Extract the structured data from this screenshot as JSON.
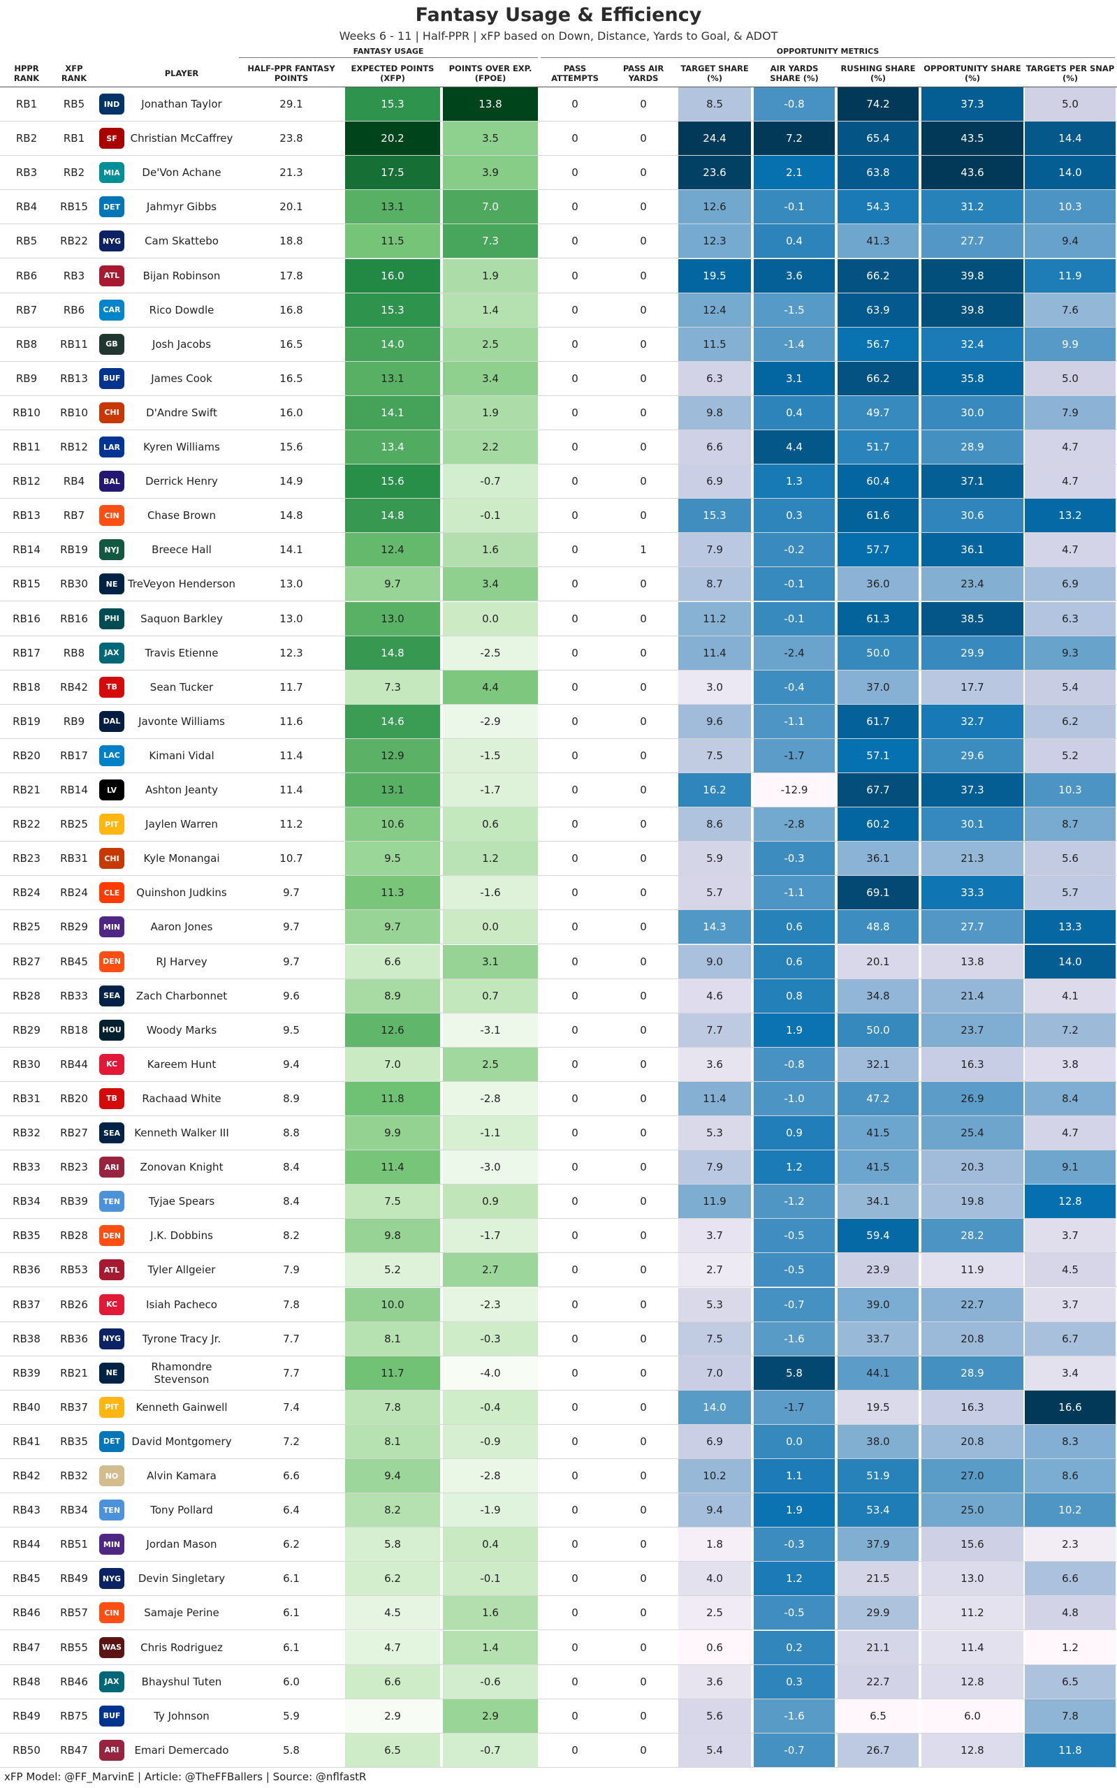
{
  "title": "Fantasy Usage & Efficiency",
  "subtitle": "Weeks 6 - 11 | Half-PPR | xFP based on Down, Distance, Yards to Goal, & ADOT",
  "footer": "xFP Model: @FF_MarvinE | Article: @TheFFBallers | Source: @nflfastR",
  "groups": {
    "fantasy": "FANTASY USAGE",
    "opportunity": "OPPORTUNITY METRICS"
  },
  "columns": {
    "hppr_rank": "HPPR RANK",
    "xfp_rank": "XFP RANK",
    "player": "PLAYER",
    "half_ppr_points": "HALF-PPR FANTASY POINTS",
    "xfp": "EXPECTED POINTS (XFP)",
    "fpoe": "POINTS OVER EXP. (FPOE)",
    "pass_attempts": "PASS ATTEMPTS",
    "pass_air_yards": "PASS AIR YARDS",
    "target_share": "TARGET SHARE (%)",
    "air_yards_share": "AIR YARDS SHARE (%)",
    "rushing_share": "RUSHING SHARE (%)",
    "opportunity_share": "OPPORTUNITY SHARE (%)",
    "targets_per_snap": "TARGETS PER SNAP (%)"
  },
  "team_colors": {
    "IND": "#013369",
    "SF": "#AA0000",
    "MIA": "#008E97",
    "DET": "#0076B6",
    "NYG": "#0B2265",
    "ATL": "#A71930",
    "CAR": "#0085CA",
    "GB": "#203731",
    "BUF": "#00338D",
    "CHI": "#C83803",
    "LAR": "#003594",
    "BAL": "#241773",
    "CIN": "#FB4F14",
    "NYJ": "#125740",
    "NE": "#002244",
    "PHI": "#004C54",
    "JAX": "#006778",
    "TB": "#D50A0A",
    "DAL": "#041E42",
    "LAC": "#0080C6",
    "LV": "#000000",
    "PIT": "#FFB612",
    "CLE": "#FF3C00",
    "MIN": "#4F2683",
    "DEN": "#FB4F14",
    "SEA": "#002244",
    "HOU": "#03202F",
    "KC": "#E31837",
    "ARI": "#97233F",
    "TEN": "#4B92DB",
    "NO": "#D3BC8D",
    "WAS": "#5A1414"
  },
  "chart_data": {
    "type": "table",
    "title": "Fantasy Usage & Efficiency",
    "rows": [
      {
        "hppr_rank": "RB1",
        "xfp_rank": "RB5",
        "team": "IND",
        "player": "Jonathan Taylor",
        "points": 29.1,
        "xfp": 15.3,
        "fpoe": 13.8,
        "pass_att": 0,
        "pass_air": 0,
        "tgt_share": 8.5,
        "air_share": -0.8,
        "rush_share": 74.2,
        "opp_share": 37.3,
        "tps": 5.0
      },
      {
        "hppr_rank": "RB2",
        "xfp_rank": "RB1",
        "team": "SF",
        "player": "Christian McCaffrey",
        "points": 23.8,
        "xfp": 20.2,
        "fpoe": 3.5,
        "pass_att": 0,
        "pass_air": 0,
        "tgt_share": 24.4,
        "air_share": 7.2,
        "rush_share": 65.4,
        "opp_share": 43.5,
        "tps": 14.4
      },
      {
        "hppr_rank": "RB3",
        "xfp_rank": "RB2",
        "team": "MIA",
        "player": "De'Von Achane",
        "points": 21.3,
        "xfp": 17.5,
        "fpoe": 3.9,
        "pass_att": 0,
        "pass_air": 0,
        "tgt_share": 23.6,
        "air_share": 2.1,
        "rush_share": 63.8,
        "opp_share": 43.6,
        "tps": 14.0
      },
      {
        "hppr_rank": "RB4",
        "xfp_rank": "RB15",
        "team": "DET",
        "player": "Jahmyr Gibbs",
        "points": 20.1,
        "xfp": 13.1,
        "fpoe": 7.0,
        "pass_att": 0,
        "pass_air": 0,
        "tgt_share": 12.6,
        "air_share": -0.1,
        "rush_share": 54.3,
        "opp_share": 31.2,
        "tps": 10.3
      },
      {
        "hppr_rank": "RB5",
        "xfp_rank": "RB22",
        "team": "NYG",
        "player": "Cam Skattebo",
        "points": 18.8,
        "xfp": 11.5,
        "fpoe": 7.3,
        "pass_att": 0,
        "pass_air": 0,
        "tgt_share": 12.3,
        "air_share": 0.4,
        "rush_share": 41.3,
        "opp_share": 27.7,
        "tps": 9.4
      },
      {
        "hppr_rank": "RB6",
        "xfp_rank": "RB3",
        "team": "ATL",
        "player": "Bijan Robinson",
        "points": 17.8,
        "xfp": 16.0,
        "fpoe": 1.9,
        "pass_att": 0,
        "pass_air": 0,
        "tgt_share": 19.5,
        "air_share": 3.6,
        "rush_share": 66.2,
        "opp_share": 39.8,
        "tps": 11.9
      },
      {
        "hppr_rank": "RB7",
        "xfp_rank": "RB6",
        "team": "CAR",
        "player": "Rico Dowdle",
        "points": 16.8,
        "xfp": 15.3,
        "fpoe": 1.4,
        "pass_att": 0,
        "pass_air": 0,
        "tgt_share": 12.4,
        "air_share": -1.5,
        "rush_share": 63.9,
        "opp_share": 39.8,
        "tps": 7.6
      },
      {
        "hppr_rank": "RB8",
        "xfp_rank": "RB11",
        "team": "GB",
        "player": "Josh Jacobs",
        "points": 16.5,
        "xfp": 14.0,
        "fpoe": 2.5,
        "pass_att": 0,
        "pass_air": 0,
        "tgt_share": 11.5,
        "air_share": -1.4,
        "rush_share": 56.7,
        "opp_share": 32.4,
        "tps": 9.9
      },
      {
        "hppr_rank": "RB9",
        "xfp_rank": "RB13",
        "team": "BUF",
        "player": "James Cook",
        "points": 16.5,
        "xfp": 13.1,
        "fpoe": 3.4,
        "pass_att": 0,
        "pass_air": 0,
        "tgt_share": 6.3,
        "air_share": 3.1,
        "rush_share": 66.2,
        "opp_share": 35.8,
        "tps": 5.0
      },
      {
        "hppr_rank": "RB10",
        "xfp_rank": "RB10",
        "team": "CHI",
        "player": "D'Andre Swift",
        "points": 16.0,
        "xfp": 14.1,
        "fpoe": 1.9,
        "pass_att": 0,
        "pass_air": 0,
        "tgt_share": 9.8,
        "air_share": 0.4,
        "rush_share": 49.7,
        "opp_share": 30.0,
        "tps": 7.9
      },
      {
        "hppr_rank": "RB11",
        "xfp_rank": "RB12",
        "team": "LAR",
        "player": "Kyren Williams",
        "points": 15.6,
        "xfp": 13.4,
        "fpoe": 2.2,
        "pass_att": 0,
        "pass_air": 0,
        "tgt_share": 6.6,
        "air_share": 4.4,
        "rush_share": 51.7,
        "opp_share": 28.9,
        "tps": 4.7
      },
      {
        "hppr_rank": "RB12",
        "xfp_rank": "RB4",
        "team": "BAL",
        "player": "Derrick Henry",
        "points": 14.9,
        "xfp": 15.6,
        "fpoe": -0.7,
        "pass_att": 0,
        "pass_air": 0,
        "tgt_share": 6.9,
        "air_share": 1.3,
        "rush_share": 60.4,
        "opp_share": 37.1,
        "tps": 4.7
      },
      {
        "hppr_rank": "RB13",
        "xfp_rank": "RB7",
        "team": "CIN",
        "player": "Chase Brown",
        "points": 14.8,
        "xfp": 14.8,
        "fpoe": -0.1,
        "pass_att": 0,
        "pass_air": 0,
        "tgt_share": 15.3,
        "air_share": 0.3,
        "rush_share": 61.6,
        "opp_share": 30.6,
        "tps": 13.2
      },
      {
        "hppr_rank": "RB14",
        "xfp_rank": "RB19",
        "team": "NYJ",
        "player": "Breece Hall",
        "points": 14.1,
        "xfp": 12.4,
        "fpoe": 1.6,
        "pass_att": 0,
        "pass_air": 1,
        "tgt_share": 7.9,
        "air_share": -0.2,
        "rush_share": 57.7,
        "opp_share": 36.1,
        "tps": 4.7
      },
      {
        "hppr_rank": "RB15",
        "xfp_rank": "RB30",
        "team": "NE",
        "player": "TreVeyon Henderson",
        "points": 13.0,
        "xfp": 9.7,
        "fpoe": 3.4,
        "pass_att": 0,
        "pass_air": 0,
        "tgt_share": 8.7,
        "air_share": -0.1,
        "rush_share": 36.0,
        "opp_share": 23.4,
        "tps": 6.9
      },
      {
        "hppr_rank": "RB16",
        "xfp_rank": "RB16",
        "team": "PHI",
        "player": "Saquon Barkley",
        "points": 13.0,
        "xfp": 13.0,
        "fpoe": 0.0,
        "pass_att": 0,
        "pass_air": 0,
        "tgt_share": 11.2,
        "air_share": -0.1,
        "rush_share": 61.3,
        "opp_share": 38.5,
        "tps": 6.3
      },
      {
        "hppr_rank": "RB17",
        "xfp_rank": "RB8",
        "team": "JAX",
        "player": "Travis Etienne",
        "points": 12.3,
        "xfp": 14.8,
        "fpoe": -2.5,
        "pass_att": 0,
        "pass_air": 0,
        "tgt_share": 11.4,
        "air_share": -2.4,
        "rush_share": 50.0,
        "opp_share": 29.9,
        "tps": 9.3
      },
      {
        "hppr_rank": "RB18",
        "xfp_rank": "RB42",
        "team": "TB",
        "player": "Sean Tucker",
        "points": 11.7,
        "xfp": 7.3,
        "fpoe": 4.4,
        "pass_att": 0,
        "pass_air": 0,
        "tgt_share": 3.0,
        "air_share": -0.4,
        "rush_share": 37.0,
        "opp_share": 17.7,
        "tps": 5.4
      },
      {
        "hppr_rank": "RB19",
        "xfp_rank": "RB9",
        "team": "DAL",
        "player": "Javonte Williams",
        "points": 11.6,
        "xfp": 14.6,
        "fpoe": -2.9,
        "pass_att": 0,
        "pass_air": 0,
        "tgt_share": 9.6,
        "air_share": -1.1,
        "rush_share": 61.7,
        "opp_share": 32.7,
        "tps": 6.2
      },
      {
        "hppr_rank": "RB20",
        "xfp_rank": "RB17",
        "team": "LAC",
        "player": "Kimani Vidal",
        "points": 11.4,
        "xfp": 12.9,
        "fpoe": -1.5,
        "pass_att": 0,
        "pass_air": 0,
        "tgt_share": 7.5,
        "air_share": -1.7,
        "rush_share": 57.1,
        "opp_share": 29.6,
        "tps": 5.2
      },
      {
        "hppr_rank": "RB21",
        "xfp_rank": "RB14",
        "team": "LV",
        "player": "Ashton Jeanty",
        "points": 11.4,
        "xfp": 13.1,
        "fpoe": -1.7,
        "pass_att": 0,
        "pass_air": 0,
        "tgt_share": 16.2,
        "air_share": -12.9,
        "rush_share": 67.7,
        "opp_share": 37.3,
        "tps": 10.3
      },
      {
        "hppr_rank": "RB22",
        "xfp_rank": "RB25",
        "team": "PIT",
        "player": "Jaylen Warren",
        "points": 11.2,
        "xfp": 10.6,
        "fpoe": 0.6,
        "pass_att": 0,
        "pass_air": 0,
        "tgt_share": 8.6,
        "air_share": -2.8,
        "rush_share": 60.2,
        "opp_share": 30.1,
        "tps": 8.7
      },
      {
        "hppr_rank": "RB23",
        "xfp_rank": "RB31",
        "team": "CHI",
        "player": "Kyle Monangai",
        "points": 10.7,
        "xfp": 9.5,
        "fpoe": 1.2,
        "pass_att": 0,
        "pass_air": 0,
        "tgt_share": 5.9,
        "air_share": -0.3,
        "rush_share": 36.1,
        "opp_share": 21.3,
        "tps": 5.6
      },
      {
        "hppr_rank": "RB24",
        "xfp_rank": "RB24",
        "team": "CLE",
        "player": "Quinshon Judkins",
        "points": 9.7,
        "xfp": 11.3,
        "fpoe": -1.6,
        "pass_att": 0,
        "pass_air": 0,
        "tgt_share": 5.7,
        "air_share": -1.1,
        "rush_share": 69.1,
        "opp_share": 33.3,
        "tps": 5.7
      },
      {
        "hppr_rank": "RB25",
        "xfp_rank": "RB29",
        "team": "MIN",
        "player": "Aaron Jones",
        "points": 9.7,
        "xfp": 9.7,
        "fpoe": 0.0,
        "pass_att": 0,
        "pass_air": 0,
        "tgt_share": 14.3,
        "air_share": 0.6,
        "rush_share": 48.8,
        "opp_share": 27.7,
        "tps": 13.3
      },
      {
        "hppr_rank": "RB27",
        "xfp_rank": "RB45",
        "team": "DEN",
        "player": "RJ Harvey",
        "points": 9.7,
        "xfp": 6.6,
        "fpoe": 3.1,
        "pass_att": 0,
        "pass_air": 0,
        "tgt_share": 9.0,
        "air_share": 0.6,
        "rush_share": 20.1,
        "opp_share": 13.8,
        "tps": 14.0
      },
      {
        "hppr_rank": "RB28",
        "xfp_rank": "RB33",
        "team": "SEA",
        "player": "Zach Charbonnet",
        "points": 9.6,
        "xfp": 8.9,
        "fpoe": 0.7,
        "pass_att": 0,
        "pass_air": 0,
        "tgt_share": 4.6,
        "air_share": 0.8,
        "rush_share": 34.8,
        "opp_share": 21.4,
        "tps": 4.1
      },
      {
        "hppr_rank": "RB29",
        "xfp_rank": "RB18",
        "team": "HOU",
        "player": "Woody Marks",
        "points": 9.5,
        "xfp": 12.6,
        "fpoe": -3.1,
        "pass_att": 0,
        "pass_air": 0,
        "tgt_share": 7.7,
        "air_share": 1.9,
        "rush_share": 50.0,
        "opp_share": 23.7,
        "tps": 7.2
      },
      {
        "hppr_rank": "RB30",
        "xfp_rank": "RB44",
        "team": "KC",
        "player": "Kareem Hunt",
        "points": 9.4,
        "xfp": 7.0,
        "fpoe": 2.5,
        "pass_att": 0,
        "pass_air": 0,
        "tgt_share": 3.6,
        "air_share": -0.8,
        "rush_share": 32.1,
        "opp_share": 16.3,
        "tps": 3.8
      },
      {
        "hppr_rank": "RB31",
        "xfp_rank": "RB20",
        "team": "TB",
        "player": "Rachaad White",
        "points": 8.9,
        "xfp": 11.8,
        "fpoe": -2.8,
        "pass_att": 0,
        "pass_air": 0,
        "tgt_share": 11.4,
        "air_share": -1.0,
        "rush_share": 47.2,
        "opp_share": 26.9,
        "tps": 8.4
      },
      {
        "hppr_rank": "RB32",
        "xfp_rank": "RB27",
        "team": "SEA",
        "player": "Kenneth Walker III",
        "points": 8.8,
        "xfp": 9.9,
        "fpoe": -1.1,
        "pass_att": 0,
        "pass_air": 0,
        "tgt_share": 5.3,
        "air_share": 0.9,
        "rush_share": 41.5,
        "opp_share": 25.4,
        "tps": 4.7
      },
      {
        "hppr_rank": "RB33",
        "xfp_rank": "RB23",
        "team": "ARI",
        "player": "Zonovan Knight",
        "points": 8.4,
        "xfp": 11.4,
        "fpoe": -3.0,
        "pass_att": 0,
        "pass_air": 0,
        "tgt_share": 7.9,
        "air_share": 1.2,
        "rush_share": 41.5,
        "opp_share": 20.3,
        "tps": 9.1
      },
      {
        "hppr_rank": "RB34",
        "xfp_rank": "RB39",
        "team": "TEN",
        "player": "Tyjae Spears",
        "points": 8.4,
        "xfp": 7.5,
        "fpoe": 0.9,
        "pass_att": 0,
        "pass_air": 0,
        "tgt_share": 11.9,
        "air_share": -1.2,
        "rush_share": 34.1,
        "opp_share": 19.8,
        "tps": 12.8
      },
      {
        "hppr_rank": "RB35",
        "xfp_rank": "RB28",
        "team": "DEN",
        "player": "J.K. Dobbins",
        "points": 8.2,
        "xfp": 9.8,
        "fpoe": -1.7,
        "pass_att": 0,
        "pass_air": 0,
        "tgt_share": 3.7,
        "air_share": -0.5,
        "rush_share": 59.4,
        "opp_share": 28.2,
        "tps": 3.7
      },
      {
        "hppr_rank": "RB36",
        "xfp_rank": "RB53",
        "team": "ATL",
        "player": "Tyler Allgeier",
        "points": 7.9,
        "xfp": 5.2,
        "fpoe": 2.7,
        "pass_att": 0,
        "pass_air": 0,
        "tgt_share": 2.7,
        "air_share": -0.5,
        "rush_share": 23.9,
        "opp_share": 11.9,
        "tps": 4.5
      },
      {
        "hppr_rank": "RB37",
        "xfp_rank": "RB26",
        "team": "KC",
        "player": "Isiah Pacheco",
        "points": 7.8,
        "xfp": 10.0,
        "fpoe": -2.3,
        "pass_att": 0,
        "pass_air": 0,
        "tgt_share": 5.3,
        "air_share": -0.7,
        "rush_share": 39.0,
        "opp_share": 22.7,
        "tps": 3.7
      },
      {
        "hppr_rank": "RB38",
        "xfp_rank": "RB36",
        "team": "NYG",
        "player": "Tyrone Tracy Jr.",
        "points": 7.7,
        "xfp": 8.1,
        "fpoe": -0.3,
        "pass_att": 0,
        "pass_air": 0,
        "tgt_share": 7.5,
        "air_share": -1.6,
        "rush_share": 33.7,
        "opp_share": 20.8,
        "tps": 6.7
      },
      {
        "hppr_rank": "RB39",
        "xfp_rank": "RB21",
        "team": "NE",
        "player": "Rhamondre Stevenson",
        "points": 7.7,
        "xfp": 11.7,
        "fpoe": -4.0,
        "pass_att": 0,
        "pass_air": 0,
        "tgt_share": 7.0,
        "air_share": 5.8,
        "rush_share": 44.1,
        "opp_share": 28.9,
        "tps": 3.4
      },
      {
        "hppr_rank": "RB40",
        "xfp_rank": "RB37",
        "team": "PIT",
        "player": "Kenneth Gainwell",
        "points": 7.4,
        "xfp": 7.8,
        "fpoe": -0.4,
        "pass_att": 0,
        "pass_air": 0,
        "tgt_share": 14.0,
        "air_share": -1.7,
        "rush_share": 19.5,
        "opp_share": 16.3,
        "tps": 16.6
      },
      {
        "hppr_rank": "RB41",
        "xfp_rank": "RB35",
        "team": "DET",
        "player": "David Montgomery",
        "points": 7.2,
        "xfp": 8.1,
        "fpoe": -0.9,
        "pass_att": 0,
        "pass_air": 0,
        "tgt_share": 6.9,
        "air_share": 0.0,
        "rush_share": 38.0,
        "opp_share": 20.8,
        "tps": 8.3
      },
      {
        "hppr_rank": "RB42",
        "xfp_rank": "RB32",
        "team": "NO",
        "player": "Alvin Kamara",
        "points": 6.6,
        "xfp": 9.4,
        "fpoe": -2.8,
        "pass_att": 0,
        "pass_air": 0,
        "tgt_share": 10.2,
        "air_share": 1.1,
        "rush_share": 51.9,
        "opp_share": 27.0,
        "tps": 8.6
      },
      {
        "hppr_rank": "RB43",
        "xfp_rank": "RB34",
        "team": "TEN",
        "player": "Tony Pollard",
        "points": 6.4,
        "xfp": 8.2,
        "fpoe": -1.9,
        "pass_att": 0,
        "pass_air": 0,
        "tgt_share": 9.4,
        "air_share": 1.9,
        "rush_share": 53.4,
        "opp_share": 25.0,
        "tps": 10.2
      },
      {
        "hppr_rank": "RB44",
        "xfp_rank": "RB51",
        "team": "MIN",
        "player": "Jordan Mason",
        "points": 6.2,
        "xfp": 5.8,
        "fpoe": 0.4,
        "pass_att": 0,
        "pass_air": 0,
        "tgt_share": 1.8,
        "air_share": -0.3,
        "rush_share": 37.9,
        "opp_share": 15.6,
        "tps": 2.3
      },
      {
        "hppr_rank": "RB45",
        "xfp_rank": "RB49",
        "team": "NYG",
        "player": "Devin Singletary",
        "points": 6.1,
        "xfp": 6.2,
        "fpoe": -0.1,
        "pass_att": 0,
        "pass_air": 0,
        "tgt_share": 4.0,
        "air_share": 1.2,
        "rush_share": 21.5,
        "opp_share": 13.0,
        "tps": 6.6
      },
      {
        "hppr_rank": "RB46",
        "xfp_rank": "RB57",
        "team": "CIN",
        "player": "Samaje Perine",
        "points": 6.1,
        "xfp": 4.5,
        "fpoe": 1.6,
        "pass_att": 0,
        "pass_air": 0,
        "tgt_share": 2.5,
        "air_share": -0.5,
        "rush_share": 29.9,
        "opp_share": 11.2,
        "tps": 4.8
      },
      {
        "hppr_rank": "RB47",
        "xfp_rank": "RB55",
        "team": "WAS",
        "player": "Chris Rodriguez",
        "points": 6.1,
        "xfp": 4.7,
        "fpoe": 1.4,
        "pass_att": 0,
        "pass_air": 0,
        "tgt_share": 0.6,
        "air_share": 0.2,
        "rush_share": 21.1,
        "opp_share": 11.4,
        "tps": 1.2
      },
      {
        "hppr_rank": "RB48",
        "xfp_rank": "RB46",
        "team": "JAX",
        "player": "Bhayshul Tuten",
        "points": 6.0,
        "xfp": 6.6,
        "fpoe": -0.6,
        "pass_att": 0,
        "pass_air": 0,
        "tgt_share": 3.6,
        "air_share": 0.3,
        "rush_share": 22.7,
        "opp_share": 12.8,
        "tps": 6.5
      },
      {
        "hppr_rank": "RB49",
        "xfp_rank": "RB75",
        "team": "BUF",
        "player": "Ty Johnson",
        "points": 5.9,
        "xfp": 2.9,
        "fpoe": 2.9,
        "pass_att": 0,
        "pass_air": 0,
        "tgt_share": 5.6,
        "air_share": -1.6,
        "rush_share": 6.5,
        "opp_share": 6.0,
        "tps": 7.8
      },
      {
        "hppr_rank": "RB50",
        "xfp_rank": "RB47",
        "team": "ARI",
        "player": "Emari Demercado",
        "points": 5.8,
        "xfp": 6.5,
        "fpoe": -0.7,
        "pass_att": 0,
        "pass_air": 0,
        "tgt_share": 5.4,
        "air_share": -0.7,
        "rush_share": 26.7,
        "opp_share": 12.8,
        "tps": 11.8
      }
    ]
  }
}
